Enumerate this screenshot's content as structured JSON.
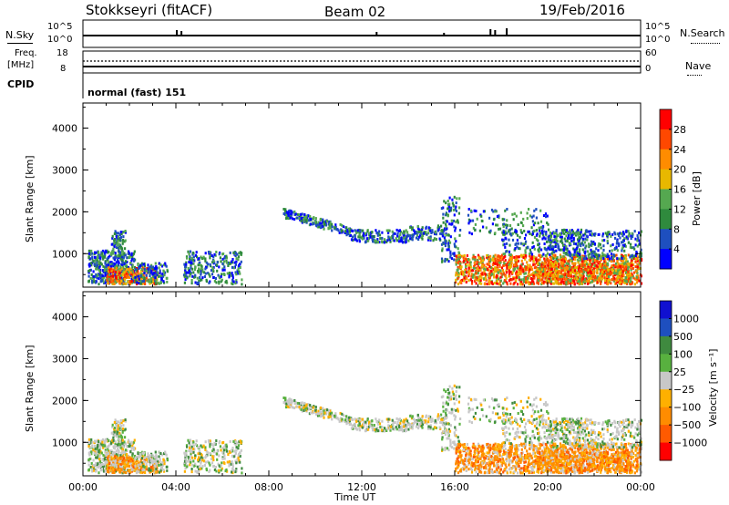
{
  "header": {
    "radar": "Stokkseyri (fitACF)",
    "beam": "Beam 02",
    "date": "19/Feb/2016"
  },
  "panels": {
    "nsky": {
      "label": "N.Sky",
      "ticks": [
        "10^5",
        "10^0"
      ],
      "right_ticks": [
        "10^5",
        "10^0"
      ],
      "right_label": "N.Search"
    },
    "freq": {
      "label": "Freq.",
      "unit": "[MHz]",
      "ticks": [
        "18",
        "8"
      ],
      "right_ticks": [
        "60",
        "0"
      ],
      "right_label": "Nave"
    },
    "cpid": {
      "label": "CPID",
      "value": "normal (fast) 151"
    }
  },
  "colors": {
    "power": [
      "#0000ff",
      "#1e4fbf",
      "#2f8a3d",
      "#55a850",
      "#e8b800",
      "#ff8c00",
      "#ff4800",
      "#ff0000"
    ],
    "velocity": [
      "#ff0000",
      "#ff5a00",
      "#ff8c00",
      "#ffb000",
      "#c8c8c8",
      "#58b13f",
      "#3f8a3f",
      "#1e4fbf",
      "#1010d0"
    ]
  },
  "chart_data": [
    {
      "type": "heatmap",
      "name": "power",
      "ylabel": "Slant Range [km]",
      "yticks": [
        "4000",
        "3000",
        "2000",
        "1000"
      ],
      "ylim": [
        200,
        4600
      ],
      "xticks": [
        "00:00",
        "04:00",
        "08:00",
        "12:00",
        "16:00",
        "20:00",
        "00:00"
      ],
      "xlim_hours": [
        0,
        24
      ],
      "colorbar_label": "Power [dB]",
      "colorbar_ticks": [
        "28",
        "24",
        "20",
        "16",
        "12",
        "8",
        "4"
      ]
    },
    {
      "type": "heatmap",
      "name": "velocity",
      "ylabel": "Slant Range [km]",
      "yticks": [
        "4000",
        "3000",
        "2000",
        "1000"
      ],
      "ylim": [
        200,
        4600
      ],
      "xticks": [
        "00:00",
        "04:00",
        "08:00",
        "12:00",
        "16:00",
        "20:00",
        "00:00"
      ],
      "xlim_hours": [
        0,
        24
      ],
      "xlabel": "Time UT",
      "colorbar_label": "Velocity [m s⁻¹]",
      "colorbar_ticks": [
        "1000",
        "500",
        "100",
        "25",
        "−25",
        "−100",
        "−500",
        "−1000"
      ]
    }
  ]
}
